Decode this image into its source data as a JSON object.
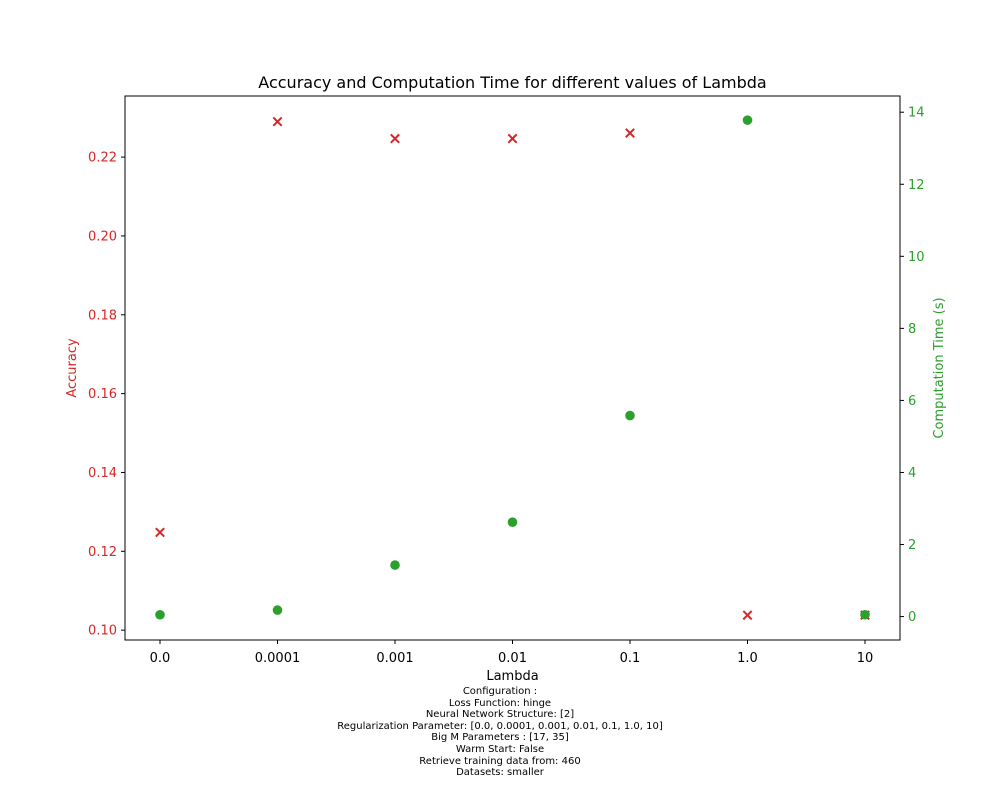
{
  "chart_data": {
    "type": "scatter",
    "title": "Accuracy and Computation Time for different values of Lambda",
    "xlabel": "Lambda",
    "ylabel_left": "Accuracy",
    "ylabel_right": "Computation Time (s)",
    "categories": [
      "0.0",
      "0.0001",
      "0.001",
      "0.01",
      "0.1",
      "1.0",
      "10"
    ],
    "left_axis": {
      "ticks": [
        "0.10",
        "0.12",
        "0.14",
        "0.16",
        "0.18",
        "0.20",
        "0.22"
      ],
      "ylim": [
        0.0975,
        0.2355
      ],
      "color": "#d62728"
    },
    "right_axis": {
      "ticks": [
        "0",
        "2",
        "4",
        "6",
        "8",
        "10",
        "12",
        "14"
      ],
      "ylim": [
        -0.65,
        14.45
      ],
      "color": "#2ca02c"
    },
    "series": [
      {
        "axis": "left",
        "marker": "x",
        "color": "#d62728",
        "values": [
          0.1248,
          0.229,
          0.2247,
          0.2247,
          0.2261,
          0.1038,
          0.1038
        ]
      },
      {
        "axis": "right",
        "marker": "o",
        "color": "#2ca02c",
        "values": [
          0.05,
          0.18,
          1.43,
          2.62,
          5.58,
          13.78,
          0.05
        ]
      }
    ],
    "grid": false
  },
  "config": {
    "lines": [
      "Configuration :",
      "Loss Function: hinge",
      "Neural Network Structure: [2]",
      "Regularization Parameter: [0.0, 0.0001, 0.001, 0.01, 0.1, 1.0, 10]",
      "Big M Parameters : [17, 35]",
      "Warm Start: False",
      "Retrieve training data from: 460",
      "Datasets: smaller"
    ]
  }
}
